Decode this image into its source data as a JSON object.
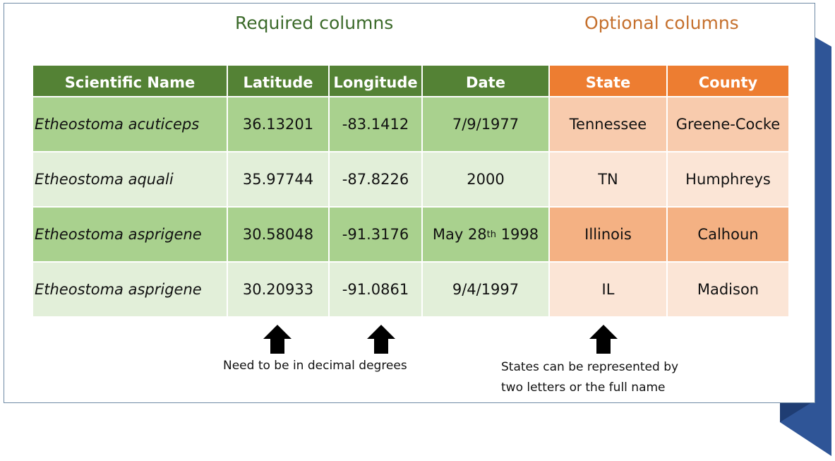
{
  "titles": {
    "required": "Required columns",
    "optional": "Optional columns"
  },
  "colors": {
    "required_header": "#548235",
    "optional_header": "#ed7d31",
    "required_title": "#3b6a2a",
    "optional_title": "#c5702d",
    "ribbon": "#2f5597"
  },
  "table": {
    "headers": [
      "Scientific Name",
      "Latitude",
      "Longitude",
      "Date",
      "State",
      "County"
    ],
    "rows": [
      {
        "name": "Etheostoma acuticeps",
        "lat": "36.13201",
        "lon": "-83.1412",
        "date": {
          "text": "7/9/1977"
        },
        "state": "Tennessee",
        "county": "Greene-Cocke"
      },
      {
        "name": "Etheostoma aquali",
        "lat": "35.97744",
        "lon": "-87.8226",
        "date": {
          "text": "2000"
        },
        "state": "TN",
        "county": "Humphreys"
      },
      {
        "name": "Etheostoma asprigene",
        "lat": "30.58048",
        "lon": "-91.3176",
        "date": {
          "text": "May 28",
          "sup": "th",
          "suffix": " 1998"
        },
        "state": "Illinois",
        "county": "Calhoun"
      },
      {
        "name": "Etheostoma asprigene",
        "lat": "30.20933",
        "lon": "-91.0861",
        "date": {
          "text": "9/4/1997"
        },
        "state": "IL",
        "county": "Madison"
      }
    ]
  },
  "notes": {
    "decimal": "Need to be in decimal degrees",
    "states_line1": "States can be represented by",
    "states_line2": "two letters or the full name"
  },
  "icons": {
    "arrow": "arrow-up-icon"
  }
}
